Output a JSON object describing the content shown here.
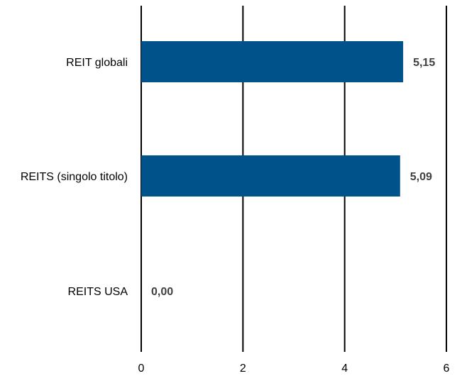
{
  "chart_data": {
    "type": "bar",
    "orientation": "horizontal",
    "categories": [
      "REIT globali",
      "REITS (singolo titolo)",
      "REITS USA"
    ],
    "values": [
      5.15,
      5.09,
      0.0
    ],
    "value_labels": [
      "5,15",
      "5,09",
      "0,00"
    ],
    "xlim": [
      0,
      6
    ],
    "x_ticks": [
      0,
      2,
      4,
      6
    ],
    "x_tick_labels": [
      "0",
      "2",
      "4",
      "6"
    ],
    "grid": true,
    "bar_color": "#00538A",
    "legend": "none"
  }
}
